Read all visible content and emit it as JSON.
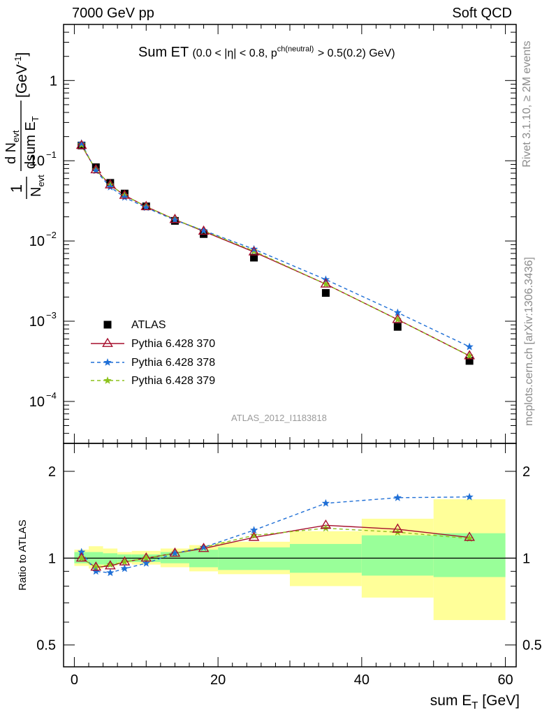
{
  "header": {
    "left": "7000 GeV pp",
    "right": "Soft QCD"
  },
  "side_labels": {
    "rivet": "Rivet 3.1.10, ≥ 2M events",
    "mcplots": "mcplots.cern.ch [arXiv:1306.3436]"
  },
  "analysis_id": "ATLAS_2012_I1183818",
  "colors": {
    "data": "#000000",
    "p370": "#a50f2d",
    "p378": "#1f6fd6",
    "p379": "#8cc21c",
    "band_stat": "#99ff99",
    "band_total": "#ffff99"
  },
  "chart_data": [
    {
      "type": "scatter",
      "title": "Sum ET (0.0 < |η| < 0.8, p^ch(neutral) > 0.5(0.2) GeV)",
      "title_main": "Sum ET",
      "title_cond": "(0.0 < |η| < 0.8, p",
      "title_sup": "ch(neutral)",
      "title_end": "> 0.5(0.2) GeV)",
      "ylabel": "1/N_evt dN_evt/dsum E_T [GeV^-1]",
      "yscale": "log",
      "xlim": [
        -1.5,
        61.5
      ],
      "ylim": [
        3e-05,
        5
      ],
      "yticks": [
        {
          "v": 1,
          "label": "1"
        },
        {
          "v": 0.1,
          "label": "10",
          "exp": "−1"
        },
        {
          "v": 0.01,
          "label": "10",
          "exp": "−2"
        },
        {
          "v": 0.001,
          "label": "10",
          "exp": "−3"
        },
        {
          "v": 0.0001,
          "label": "10",
          "exp": "−4"
        }
      ],
      "x": [
        1,
        3,
        5,
        7,
        10,
        14,
        18,
        25,
        35,
        45,
        55
      ],
      "series": [
        {
          "name": "ATLAS",
          "marker": "square",
          "values": [
            0.155,
            0.083,
            0.053,
            0.039,
            0.027,
            0.0178,
            0.0122,
            0.0062,
            0.00225,
            0.00085,
            0.00032
          ]
        },
        {
          "name": "Pythia 6.428 370",
          "marker": "triangle",
          "values": [
            0.155,
            0.077,
            0.05,
            0.037,
            0.0268,
            0.0185,
            0.0132,
            0.0073,
            0.0029,
            0.00105,
            0.00037
          ]
        },
        {
          "name": "Pythia 6.428 378",
          "marker": "star",
          "values": [
            0.165,
            0.075,
            0.047,
            0.035,
            0.026,
            0.0182,
            0.0135,
            0.0079,
            0.0033,
            0.00128,
            0.00048
          ]
        },
        {
          "name": "Pythia 6.428 379",
          "marker": "star",
          "values": [
            0.158,
            0.077,
            0.05,
            0.037,
            0.0268,
            0.0185,
            0.0134,
            0.0075,
            0.0029,
            0.00105,
            0.00037
          ]
        }
      ]
    },
    {
      "type": "line",
      "xlabel": "sum E_T [GeV]",
      "ylabel": "Ratio to ATLAS",
      "yscale": "log",
      "xlim": [
        -1.5,
        61.5
      ],
      "ylim": [
        0.42,
        2.5
      ],
      "xticks": [
        0,
        20,
        40,
        60
      ],
      "yticks": [
        0.5,
        1,
        2
      ],
      "bin_edges": [
        0,
        2,
        4,
        6,
        8,
        12,
        16,
        20,
        30,
        40,
        50,
        60
      ],
      "band_stat": [
        [
          0.96,
          1.05
        ],
        [
          0.95,
          1.05
        ],
        [
          0.95,
          1.04
        ],
        [
          0.97,
          1.03
        ],
        [
          0.97,
          1.03
        ],
        [
          0.96,
          1.05
        ],
        [
          0.93,
          1.07
        ],
        [
          0.91,
          1.09
        ],
        [
          0.89,
          1.12
        ],
        [
          0.87,
          1.2
        ],
        [
          0.86,
          1.22
        ]
      ],
      "band_total": [
        [
          0.94,
          1.07
        ],
        [
          0.92,
          1.1
        ],
        [
          0.94,
          1.08
        ],
        [
          0.96,
          1.05
        ],
        [
          0.95,
          1.06
        ],
        [
          0.93,
          1.08
        ],
        [
          0.9,
          1.11
        ],
        [
          0.88,
          1.14
        ],
        [
          0.8,
          1.24
        ],
        [
          0.73,
          1.37
        ],
        [
          0.61,
          1.6
        ]
      ],
      "series": [
        {
          "name": "Pythia 6.428 370",
          "values": [
            1.0,
            0.93,
            0.94,
            0.97,
            1.0,
            1.04,
            1.08,
            1.18,
            1.3,
            1.26,
            1.18
          ]
        },
        {
          "name": "Pythia 6.428 378",
          "values": [
            1.05,
            0.9,
            0.89,
            0.92,
            0.96,
            1.04,
            1.09,
            1.25,
            1.55,
            1.62,
            1.63
          ]
        },
        {
          "name": "Pythia 6.428 379",
          "values": [
            1.0,
            0.93,
            0.95,
            0.97,
            1.0,
            1.04,
            1.09,
            1.2,
            1.27,
            1.23,
            1.17
          ]
        }
      ]
    }
  ]
}
